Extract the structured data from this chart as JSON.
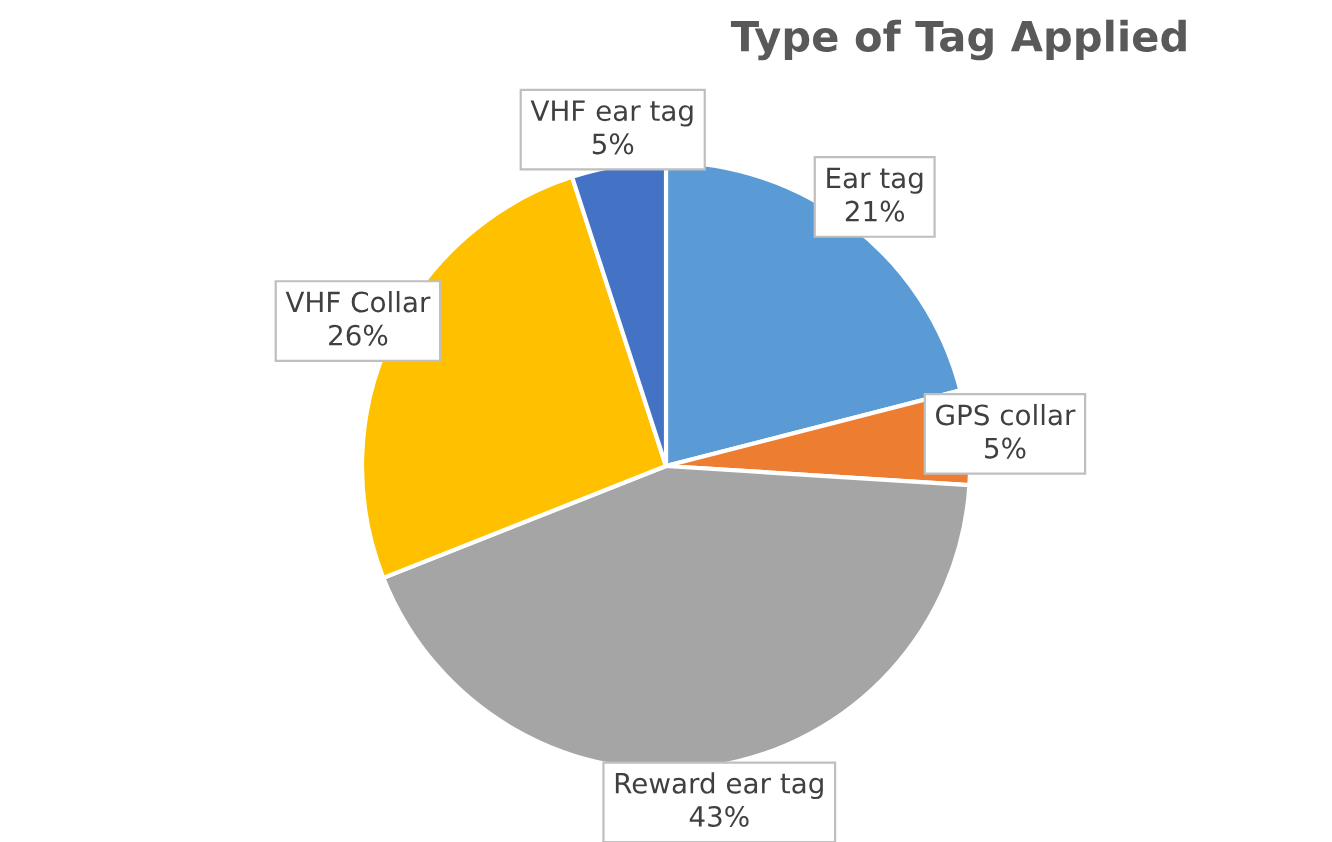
{
  "chart_data": {
    "type": "pie",
    "title": "Type of Tag Applied",
    "categories": [
      "Ear tag",
      "GPS collar",
      "Reward ear tag",
      "VHF Collar",
      "VHF ear tag"
    ],
    "values": [
      21,
      5,
      43,
      26,
      5
    ],
    "value_labels": [
      "21%",
      "5%",
      "43%",
      "26%",
      "5%"
    ],
    "colors": [
      "#5b9bd5",
      "#ed7d31",
      "#a5a5a5",
      "#ffc000",
      "#4472c4"
    ],
    "legend": false
  }
}
